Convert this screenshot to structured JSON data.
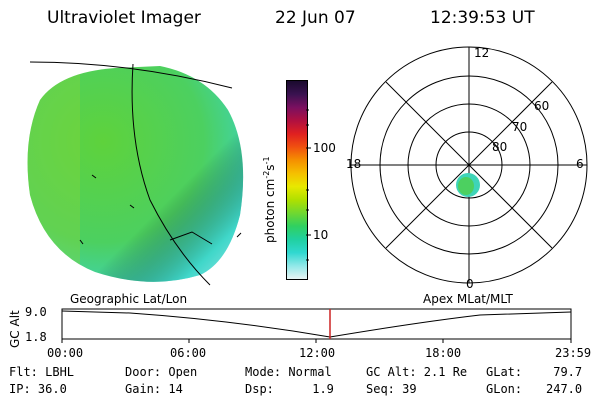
{
  "header": {
    "title": "Ultraviolet Imager",
    "date": "22 Jun 07",
    "time": "12:39:53 UT"
  },
  "colorbar": {
    "unit_label": "photon cm",
    "unit_exp1": "-2",
    "unit_s": "s",
    "unit_exp2": "-1",
    "ticks": [
      "100",
      "10"
    ],
    "colors": [
      "#1a0a2e",
      "#3a1250",
      "#7a1060",
      "#b01040",
      "#e02020",
      "#f05010",
      "#f59000",
      "#f5c000",
      "#e8e800",
      "#b0e000",
      "#70d830",
      "#30d060",
      "#20d0a0",
      "#30d8d0",
      "#90e8e8",
      "#e8f4f4"
    ]
  },
  "polar": {
    "mlt_labels": [
      "12",
      "18",
      "6",
      "0"
    ],
    "lat_labels": [
      "60",
      "70",
      "80"
    ]
  },
  "timeline": {
    "left_label": "Geographic Lat/Lon",
    "right_label": "Apex MLat/MLT",
    "axis_title": "GC Alt",
    "y_ticks": [
      "9.0",
      "1.8"
    ],
    "x_ticks": [
      "00:00",
      "06:00",
      "12:00",
      "18:00",
      "23:59"
    ],
    "marker_color": "#cc2222"
  },
  "status": {
    "flt": "Flt: LBHL",
    "ip": "IP: 36.0",
    "door": "Door: Open",
    "gain": "Gain: 14",
    "mode": "Mode: Normal",
    "dsp_label": "Dsp:",
    "dsp_value": "1.9",
    "gc_alt": "GC Alt: 2.1 Re",
    "seq": "Seq: 39",
    "glat_label": "GLat:",
    "glat_value": "79.7",
    "glon_label": "GLon:",
    "glon_value": "247.0"
  }
}
